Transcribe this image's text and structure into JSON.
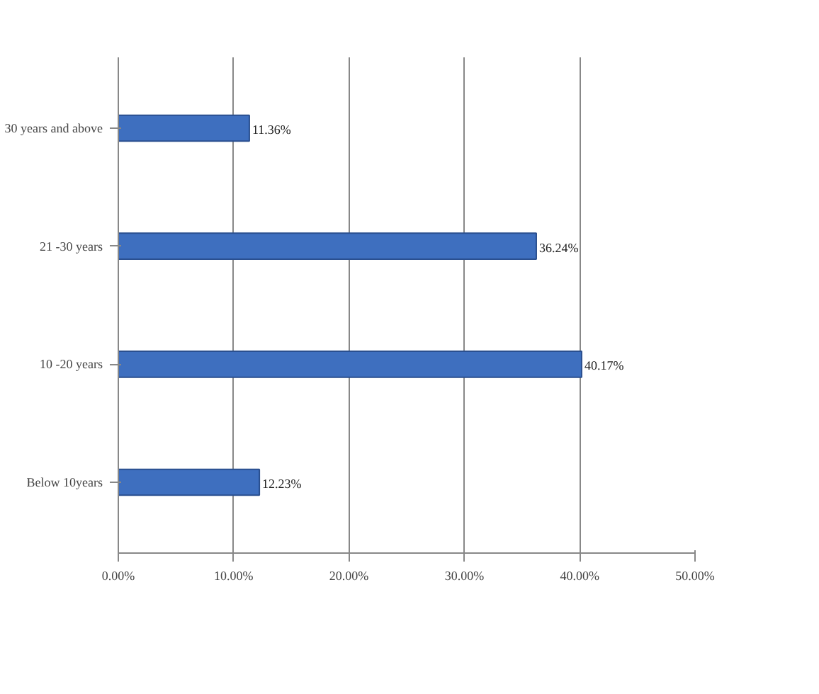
{
  "chart_data": {
    "type": "bar",
    "orientation": "horizontal",
    "categories": [
      "30 years and above",
      "21 -30 years",
      "10 -20 years",
      "Below 10years"
    ],
    "values": [
      11.36,
      36.24,
      40.17,
      12.23
    ],
    "value_labels": [
      "11.36%",
      "36.24%",
      "40.17%",
      "12.23%"
    ],
    "color": "#3e6fbf",
    "xlim": [
      0,
      50
    ],
    "xticks": [
      {
        "value": 0,
        "label": "0.00%"
      },
      {
        "value": 10,
        "label": "10.00%"
      },
      {
        "value": 20,
        "label": "20.00%"
      },
      {
        "value": 30,
        "label": "30.00%"
      },
      {
        "value": 40,
        "label": "40.00%"
      },
      {
        "value": 50,
        "label": "50.00%"
      }
    ],
    "grid": "x"
  }
}
